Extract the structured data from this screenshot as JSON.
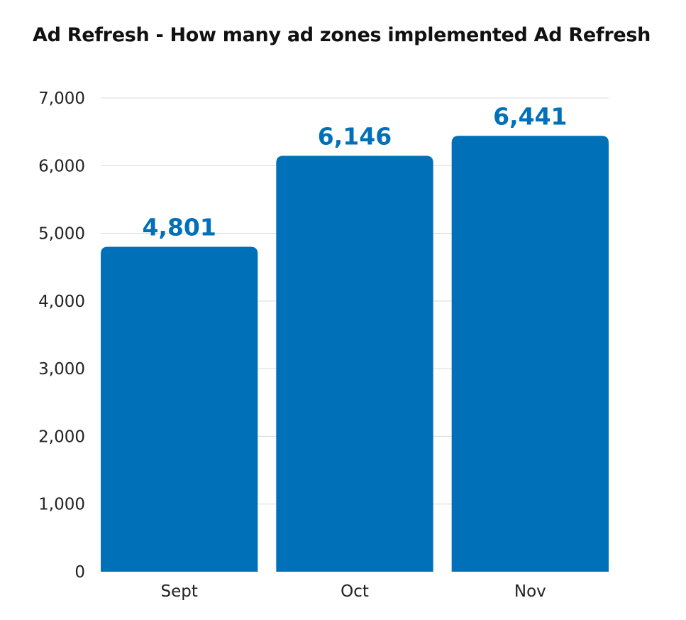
{
  "chart_data": {
    "type": "bar",
    "title": "Ad Refresh - How many ad zones implemented Ad Refresh",
    "categories": [
      "Sept",
      "Oct",
      "Nov"
    ],
    "values": [
      4801,
      6146,
      6441
    ],
    "data_labels": [
      "4,801",
      "6,146",
      "6,441"
    ],
    "yticks": [
      0,
      1000,
      2000,
      3000,
      4000,
      5000,
      6000,
      7000
    ],
    "ytick_labels": [
      "0",
      "1,000",
      "2,000",
      "3,000",
      "4,000",
      "5,000",
      "6,000",
      "7,000"
    ],
    "ylim": [
      0,
      7000
    ],
    "grid": true,
    "legend": "none",
    "bar_color": "#0070b8",
    "label_color": "#0070b8"
  }
}
